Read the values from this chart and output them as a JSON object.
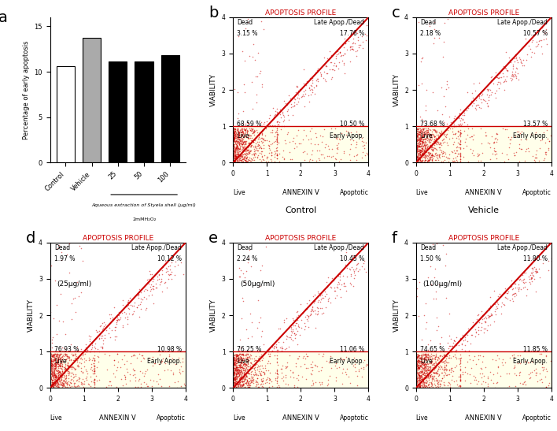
{
  "bar_categories": [
    "Control",
    "Vehicle",
    "25",
    "50",
    "100"
  ],
  "bar_values": [
    10.65,
    13.77,
    11.1,
    11.1,
    11.85
  ],
  "bar_colors": [
    "white",
    "#aaaaaa",
    "black",
    "black",
    "black"
  ],
  "bar_edgecolors": [
    "black",
    "black",
    "black",
    "black",
    "black"
  ],
  "ylabel_bar": "Percentage of early apoptosis",
  "yticks_bar": [
    0,
    5,
    10,
    15
  ],
  "ylim_bar": [
    0,
    16
  ],
  "xlabel_bracket_label": "Aqueous extraction of Styela shell (μg/ml)",
  "xlabel_bottom": "2mMH₂O₂",
  "panels": [
    {
      "dead": "3.15 %",
      "late": "17.76 %",
      "live": "68.59 %",
      "early": "10.50 %",
      "title_sub": "Control"
    },
    {
      "dead": "2.18 %",
      "late": "10.57 %",
      "live": "73.68 %",
      "early": "13.57 %",
      "title_sub": "Vehicle"
    },
    {
      "dead": "1.97 %",
      "late": "10.12 %",
      "live": "76.93 %",
      "early": "10.98 %",
      "title_sub": "(25μg/ml)"
    },
    {
      "dead": "2.24 %",
      "late": "10.45 %",
      "live": "76.25 %",
      "early": "11.06 %",
      "title_sub": "(50μg/ml)"
    },
    {
      "dead": "1.50 %",
      "late": "11.80 %",
      "live": "74.65 %",
      "early": "11.85 %",
      "title_sub": "(100μg/ml)"
    }
  ],
  "scatter_color_dense": "#cc0000",
  "title_color": "#cc0000",
  "hline_color": "#cc0000",
  "diag_line_color": "#cc0000",
  "scatter_xlim": [
    0,
    4
  ],
  "scatter_ylim": [
    0,
    4
  ]
}
